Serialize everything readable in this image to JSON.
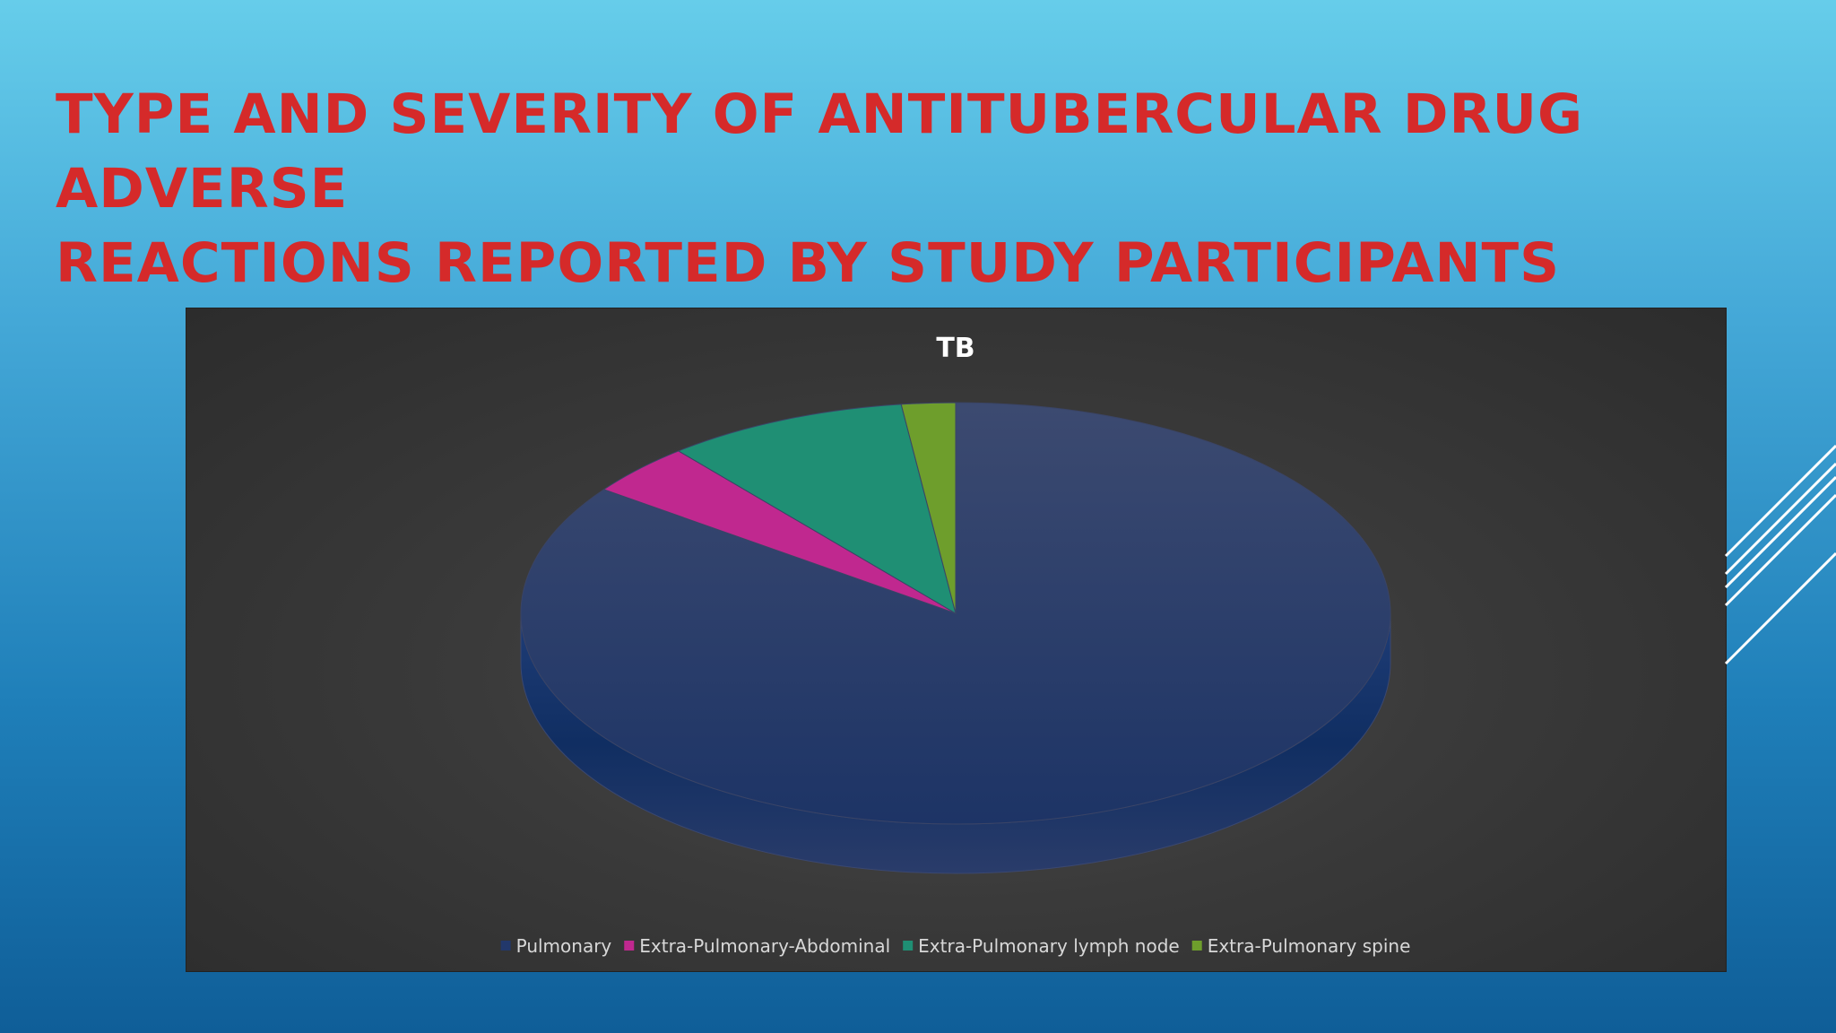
{
  "slide": {
    "title_lines": [
      "TYPE AND SEVERITY OF ANTITUBERCULAR DRUG ADVERSE",
      "REACTIONS REPORTED BY STUDY PARTICIPANTS"
    ]
  },
  "chart_data": {
    "type": "pie",
    "title": "TB",
    "style": "3d",
    "legend_position": "bottom",
    "categories": [
      "Pulmonary",
      "Extra-Pulmonary-Abdominal",
      "Extra-Pulmonary lymph node",
      "Extra-Pulmonary spine"
    ],
    "values": [
      85,
      4,
      9,
      2
    ],
    "colors": [
      "#22386b",
      "#c0288f",
      "#1f8f74",
      "#6e9e2c"
    ]
  }
}
